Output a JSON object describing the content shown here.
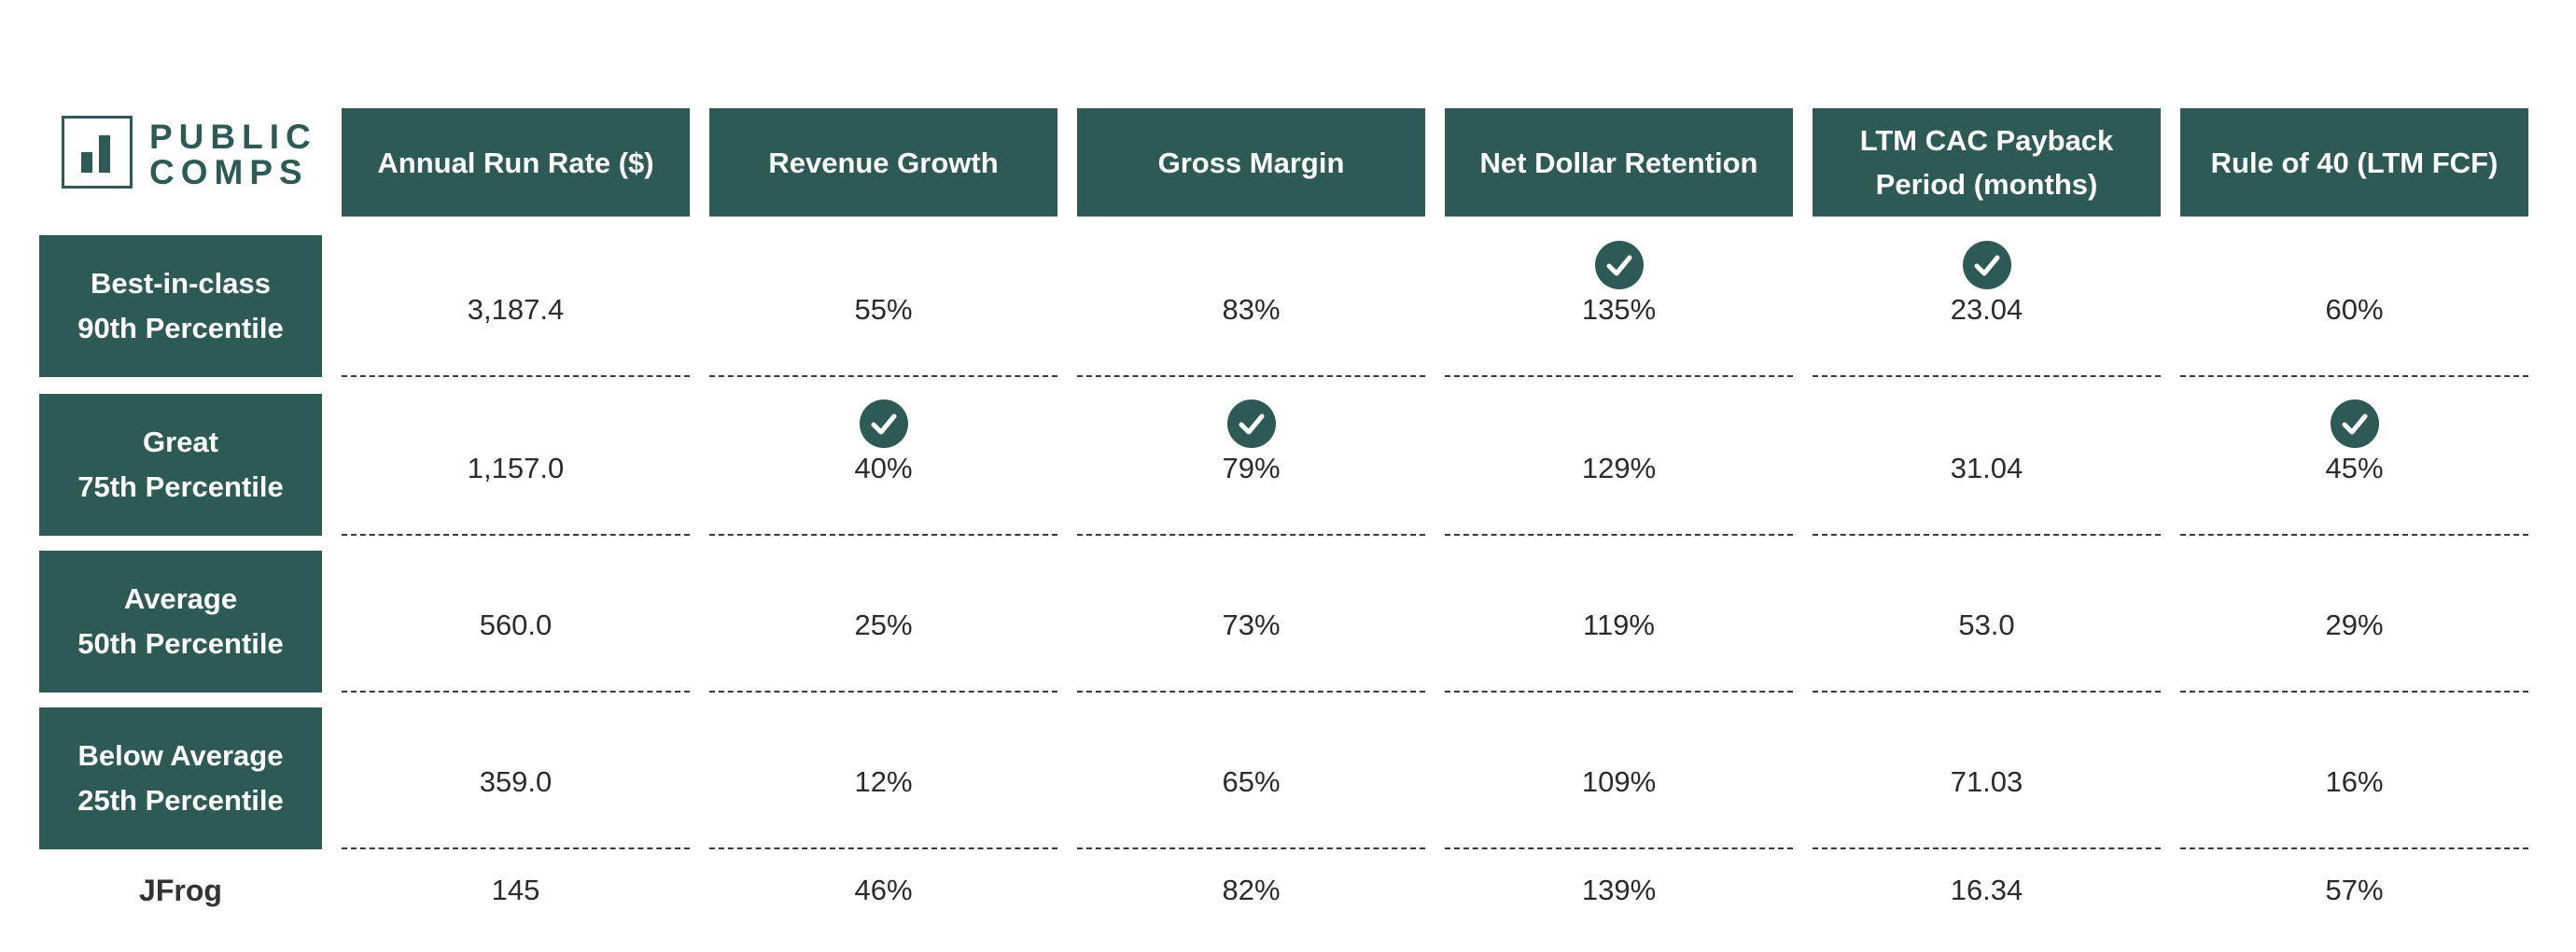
{
  "logo": {
    "line1": "PUBLIC",
    "line2": "COMPS"
  },
  "chart_data": {
    "type": "table",
    "columns": [
      "Annual Run Rate ($)",
      "Revenue Growth",
      "Gross Margin",
      "Net Dollar Retention",
      "LTM CAC Payback Period (months)",
      "Rule of 40 (LTM FCF)"
    ],
    "rows": [
      {
        "line1": "Best-in-class",
        "line2": "90th Percentile",
        "values": [
          "3,187.4",
          "55%",
          "83%",
          "135%",
          "23.04",
          "60%"
        ],
        "checked": [
          false,
          false,
          false,
          true,
          true,
          false
        ]
      },
      {
        "line1": "Great",
        "line2": "75th Percentile",
        "values": [
          "1,157.0",
          "40%",
          "79%",
          "129%",
          "31.04",
          "45%"
        ],
        "checked": [
          false,
          true,
          true,
          false,
          false,
          true
        ]
      },
      {
        "line1": "Average",
        "line2": "50th Percentile",
        "values": [
          "560.0",
          "25%",
          "73%",
          "119%",
          "53.0",
          "29%"
        ],
        "checked": [
          false,
          false,
          false,
          false,
          false,
          false
        ]
      },
      {
        "line1": "Below Average",
        "line2": "25th Percentile",
        "values": [
          "359.0",
          "12%",
          "65%",
          "109%",
          "71.03",
          "16%"
        ],
        "checked": [
          false,
          false,
          false,
          false,
          false,
          false
        ]
      }
    ],
    "company": {
      "name": "JFrog",
      "values": [
        "145",
        "46%",
        "82%",
        "139%",
        "16.34",
        "57%"
      ]
    }
  }
}
